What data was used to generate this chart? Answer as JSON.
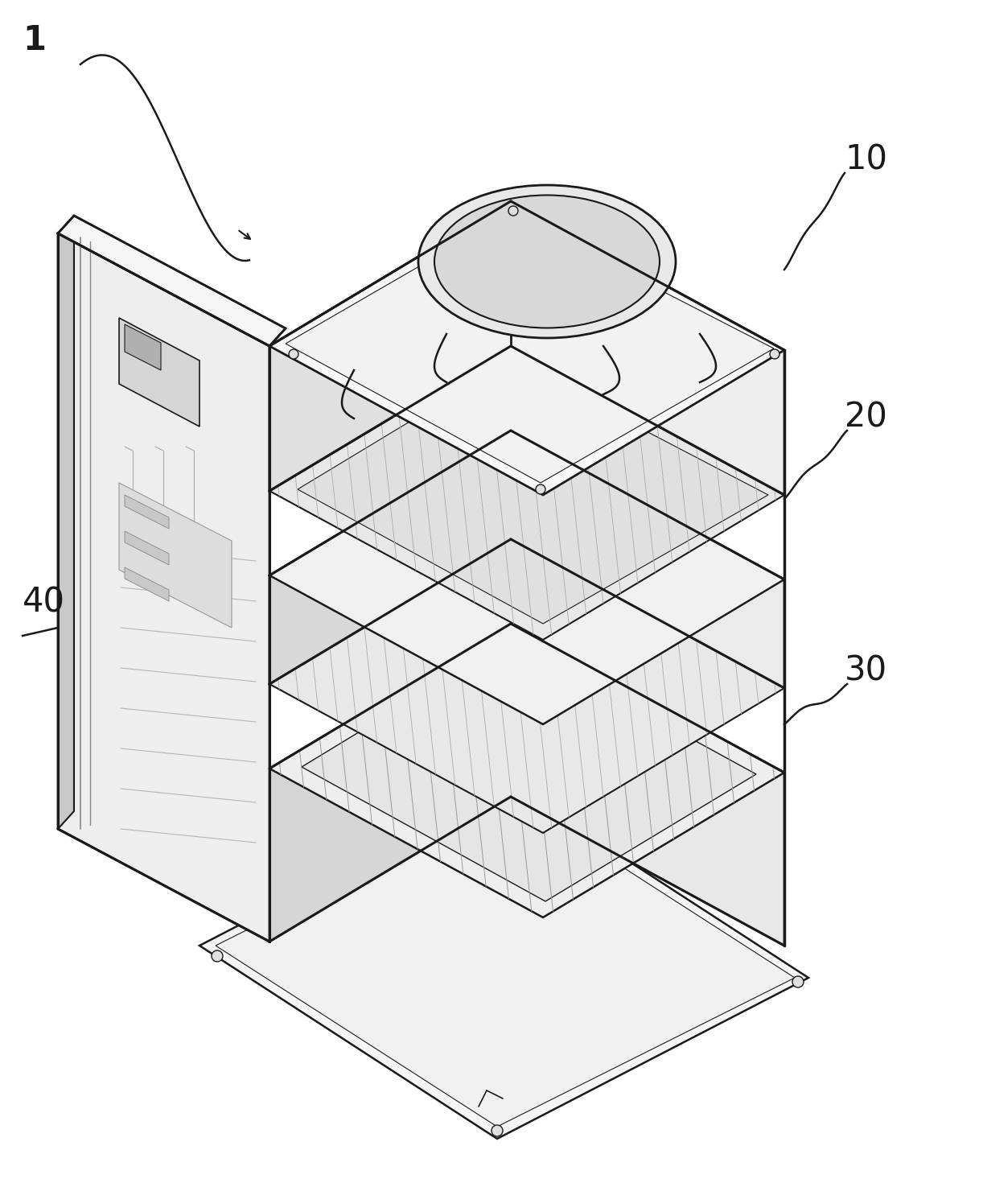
{
  "bg_color": "#ffffff",
  "line_color": "#1a1a1a",
  "face_top": "#f2f2f2",
  "face_right": "#e0e0e0",
  "face_left": "#cccccc",
  "face_dark": "#b8b8b8",
  "face_white": "#f8f8f8",
  "hatch_color": "#888888",
  "label_1": "1",
  "label_10": "10",
  "label_20": "20",
  "label_30": "30",
  "label_40": "40",
  "label_fontsize": 30
}
